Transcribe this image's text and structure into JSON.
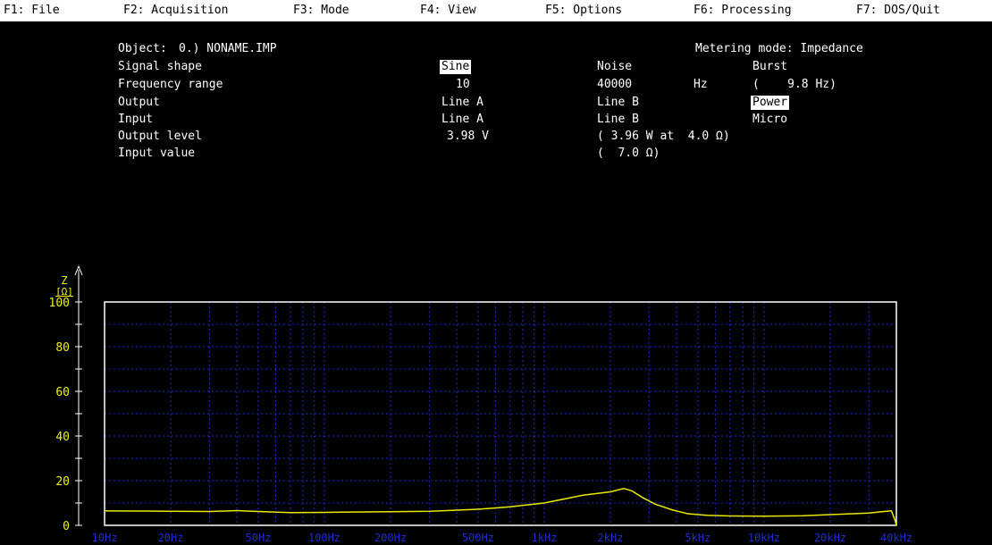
{
  "menu": [
    {
      "label": "F1: File"
    },
    {
      "label": "F2: Acquisition"
    },
    {
      "label": "F3: Mode"
    },
    {
      "label": "F4: View"
    },
    {
      "label": "F5: Options"
    },
    {
      "label": "F6: Processing"
    },
    {
      "label": "F7: DOS/Quit"
    }
  ],
  "params": {
    "object_label": "Object:",
    "object_value": "0.) NONAME.IMP",
    "metering_mode": "Metering mode: Impedance",
    "signal_shape": {
      "label": "Signal shape",
      "opt1": "Sine",
      "opt2": "Noise",
      "opt3": "Burst"
    },
    "frequency_range": {
      "label": "Frequency range",
      "from": "10",
      "to": "40000",
      "unit": "Hz",
      "step": "(    9.8 Hz)"
    },
    "output": {
      "label": "Output",
      "opt1": "Line A",
      "opt2": "Line B",
      "opt3": "Power"
    },
    "input": {
      "label": "Input",
      "opt1": "Line A",
      "opt2": "Line B",
      "opt3": "Micro"
    },
    "output_level": {
      "label": "Output level",
      "value": "3.98 V",
      "detail": "( 3.96 W at  4.0 Ω)"
    },
    "input_value": {
      "label": "Input value",
      "detail": "(  7.0 Ω)"
    }
  },
  "chart_data": {
    "type": "line",
    "y_axis_symbol": "Z",
    "y_axis_unit": "[Ω]",
    "x_scale": "log",
    "xlim": [
      10,
      40000
    ],
    "ylim": [
      0,
      100
    ],
    "y_ticks": [
      0,
      20,
      40,
      60,
      80,
      100
    ],
    "x_ticks": [
      {
        "value": 10,
        "label": "10Hz"
      },
      {
        "value": 20,
        "label": "20Hz"
      },
      {
        "value": 50,
        "label": "50Hz"
      },
      {
        "value": 100,
        "label": "100Hz"
      },
      {
        "value": 200,
        "label": "200Hz"
      },
      {
        "value": 500,
        "label": "500Hz"
      },
      {
        "value": 1000,
        "label": "1kHz"
      },
      {
        "value": 2000,
        "label": "2kHz"
      },
      {
        "value": 5000,
        "label": "5kHz"
      },
      {
        "value": 10000,
        "label": "10kHz"
      },
      {
        "value": 20000,
        "label": "20kHz"
      },
      {
        "value": 40000,
        "label": "40kHz"
      }
    ],
    "grid": true,
    "colors": {
      "frame": "#ffffff",
      "grid": "#1c2cd8",
      "curve": "#e8e800",
      "axis_labels": "#f0f000",
      "tick_labels": "#1c2cd8"
    },
    "series": [
      {
        "x": [
          10,
          15,
          20,
          30,
          40,
          50,
          70,
          100,
          150,
          200,
          300,
          400,
          500,
          700,
          1000,
          1500,
          2000,
          2300,
          2500,
          2800,
          3200,
          3800,
          4500,
          5500,
          7000,
          10000,
          15000,
          20000,
          30000,
          36000,
          38000,
          39500,
          40000
        ],
        "y": [
          6.5,
          6.4,
          6.3,
          6.2,
          6.6,
          6.2,
          5.7,
          5.8,
          6.0,
          6.1,
          6.3,
          6.8,
          7.2,
          8.3,
          10.0,
          13.5,
          15.0,
          16.5,
          15.5,
          12.5,
          9.5,
          7.0,
          5.2,
          4.5,
          4.2,
          4.1,
          4.3,
          4.8,
          5.5,
          6.3,
          6.5,
          2.0,
          0.0
        ]
      }
    ]
  }
}
